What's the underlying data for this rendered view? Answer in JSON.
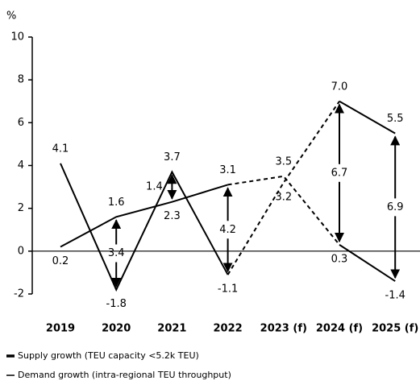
{
  "chart_data": {
    "type": "line",
    "y_label": "%",
    "categories": [
      "2019",
      "2020",
      "2021",
      "2022",
      "2023 (f)",
      "2024 (f)",
      "2025 (f)"
    ],
    "series": [
      {
        "name": "Supply growth (TEU capacity <5.2k TEU)",
        "color": "#000000",
        "values": [
          4.1,
          -1.8,
          3.7,
          -1.1,
          3.2,
          7.0,
          5.5
        ],
        "value_labels": [
          "4.1",
          "-1.8",
          "3.7",
          "-1.1",
          "3.2",
          "7.0",
          "5.5"
        ]
      },
      {
        "name": "Demand growth (intra-regional TEU throughput)",
        "color": "#000000",
        "values": [
          0.2,
          1.6,
          2.3,
          3.1,
          3.5,
          0.3,
          -1.4
        ]
      }
    ],
    "gaps": {
      "values": [
        null,
        3.4,
        1.4,
        4.2,
        null,
        6.7,
        6.9
      ]
    },
    "ylim": [
      -2,
      10
    ],
    "yticks": [
      -2,
      0,
      2,
      4,
      6,
      8,
      10
    ]
  }
}
